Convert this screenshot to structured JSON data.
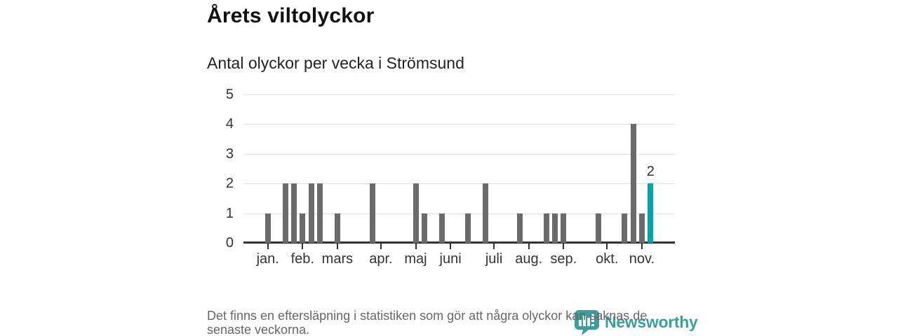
{
  "title": "Årets viltolyckor",
  "subtitle": "Antal olyckor per vecka i Strömsund",
  "footnote_lines": [
    "Det finns en eftersläpning i statistiken som gör att några olyckor kan saknas de",
    "senaste veckorna."
  ],
  "brand": {
    "name": "Newsworthy",
    "icon": "speech-bubble-bar-chart-icon"
  },
  "colors": {
    "background": "#ffffff",
    "bar_default": "#6b6b6b",
    "bar_highlight": "#00a2a2",
    "axis_line": "#333333",
    "gridline": "#e1e1e1",
    "tick_label": "#333333",
    "title_text": "#111111",
    "subtitle_text": "#222222",
    "footnote_text": "#666666",
    "brand_teal": "#3e9d9b"
  },
  "chart_data": {
    "type": "bar",
    "title": "Årets viltolyckor",
    "subtitle": "Antal olyckor per vecka i Strömsund",
    "xlabel": "",
    "ylabel": "",
    "x_unit": "vecka",
    "weeks": [
      1,
      2,
      3,
      4,
      5,
      6,
      7,
      8,
      9,
      10,
      11,
      12,
      13,
      14,
      15,
      16,
      17,
      18,
      19,
      20,
      21,
      22,
      23,
      24,
      25,
      26,
      27,
      28,
      29,
      30,
      31,
      32,
      33,
      34,
      35,
      36,
      37,
      38,
      39,
      40,
      41,
      42,
      43,
      44,
      45
    ],
    "values": [
      1,
      0,
      2,
      2,
      1,
      2,
      2,
      0,
      1,
      0,
      0,
      0,
      2,
      0,
      0,
      0,
      0,
      2,
      1,
      0,
      1,
      0,
      0,
      1,
      0,
      2,
      0,
      0,
      0,
      1,
      0,
      0,
      1,
      1,
      1,
      0,
      0,
      0,
      1,
      0,
      0,
      1,
      4,
      1,
      2
    ],
    "highlight": {
      "week": 45,
      "value": 2,
      "label": "2"
    },
    "month_ticks": [
      {
        "label": "jan.",
        "week": 1
      },
      {
        "label": "feb.",
        "week": 5
      },
      {
        "label": "mars",
        "week": 9
      },
      {
        "label": "apr.",
        "week": 14
      },
      {
        "label": "maj",
        "week": 18
      },
      {
        "label": "juni",
        "week": 22
      },
      {
        "label": "juli",
        "week": 27
      },
      {
        "label": "aug.",
        "week": 31
      },
      {
        "label": "sep.",
        "week": 35
      },
      {
        "label": "okt.",
        "week": 40
      },
      {
        "label": "nov.",
        "week": 44
      }
    ],
    "ylim": [
      0,
      5
    ],
    "yticks": [
      0,
      1,
      2,
      3,
      4,
      5
    ],
    "grid": "horizontal",
    "legend": "none"
  }
}
